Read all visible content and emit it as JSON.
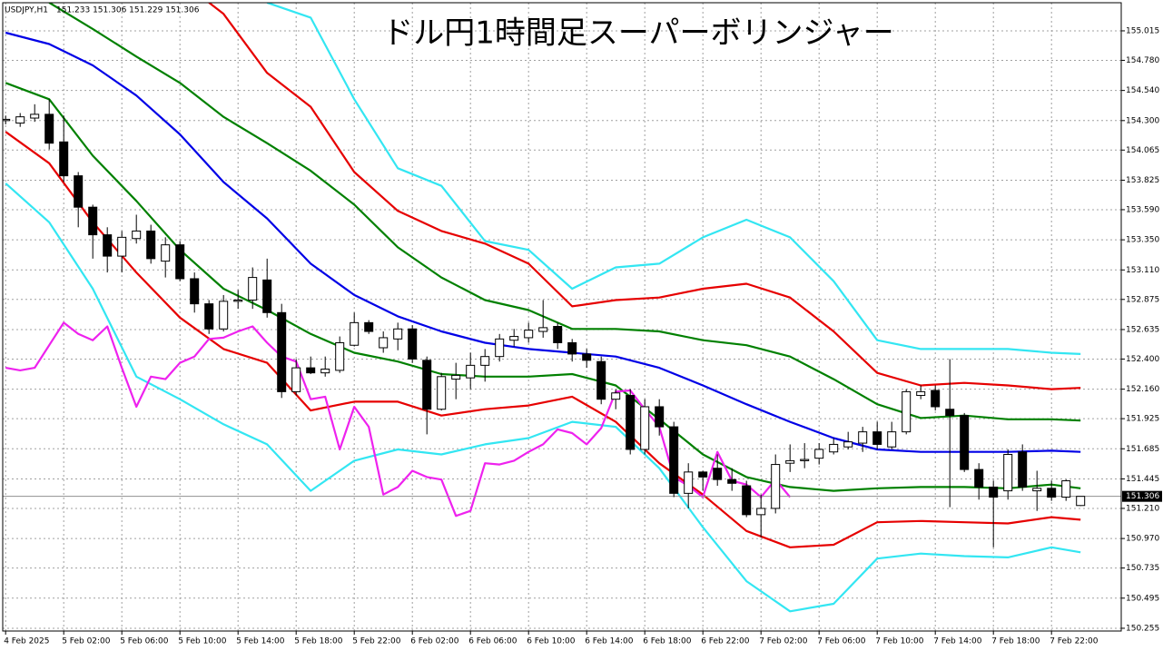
{
  "chart_data": {
    "type": "candlestick",
    "title": "ドル円1時間足スーパーボリンジャー",
    "symbol_label": "USDJPY,H1",
    "ohlc_label": "151.233 151.306 151.229 151.306",
    "last_price": 151.306,
    "grid": true,
    "up_color": "#ffffff",
    "down_color": "#000000",
    "x": [
      0,
      1,
      2,
      3,
      4,
      5,
      6,
      7,
      8,
      9,
      10,
      11,
      12,
      13,
      14,
      15,
      16,
      17,
      18,
      19,
      20,
      21,
      22,
      23,
      24,
      25,
      26,
      27,
      28,
      29,
      30,
      31,
      32,
      33,
      34,
      35,
      36,
      37,
      38,
      39,
      40,
      41,
      42,
      43,
      44,
      45,
      46,
      47,
      48,
      49,
      50,
      51,
      52,
      53,
      54,
      55,
      56,
      57,
      58,
      59,
      60,
      61,
      62,
      63,
      64,
      65,
      66,
      67,
      68,
      69,
      70,
      71,
      72,
      73,
      74
    ],
    "open": [
      154.3,
      154.28,
      154.32,
      154.35,
      154.13,
      153.86,
      153.61,
      153.39,
      153.22,
      153.36,
      153.42,
      153.18,
      153.31,
      153.04,
      152.84,
      152.64,
      152.86,
      152.87,
      153.03,
      152.77,
      152.14,
      152.33,
      152.29,
      152.31,
      152.51,
      152.69,
      152.49,
      152.56,
      152.64,
      152.39,
      152.0,
      152.24,
      152.25,
      152.35,
      152.42,
      152.55,
      152.57,
      152.62,
      152.66,
      152.53,
      152.44,
      152.38,
      152.08,
      152.11,
      151.68,
      152.02,
      151.86,
      151.33,
      151.5,
      151.53,
      151.44,
      151.39,
      151.16,
      151.21,
      151.57,
      151.59,
      151.61,
      151.66,
      151.7,
      151.73,
      151.82,
      151.7,
      151.82,
      152.11,
      152.15,
      152.0,
      151.95,
      151.52,
      151.38,
      151.35,
      151.66,
      151.35,
      151.37,
      151.3,
      151.233
    ],
    "high": [
      154.34,
      154.36,
      154.43,
      154.47,
      154.34,
      153.89,
      153.63,
      153.45,
      153.42,
      153.55,
      153.47,
      153.37,
      153.34,
      153.09,
      152.87,
      152.91,
      152.95,
      153.13,
      153.2,
      152.84,
      152.4,
      152.42,
      152.42,
      152.58,
      152.77,
      152.71,
      152.62,
      152.69,
      152.67,
      152.42,
      152.29,
      152.37,
      152.45,
      152.48,
      152.6,
      152.64,
      152.69,
      152.87,
      152.69,
      152.56,
      152.48,
      152.42,
      152.16,
      152.16,
      152.08,
      152.08,
      151.9,
      151.57,
      151.51,
      151.64,
      151.53,
      151.43,
      151.32,
      151.64,
      151.72,
      151.73,
      151.73,
      151.77,
      151.82,
      151.86,
      151.9,
      151.9,
      152.16,
      152.19,
      152.19,
      152.4,
      151.97,
      151.57,
      151.43,
      151.68,
      151.72,
      151.51,
      151.43,
      151.44,
      151.306
    ],
    "low": [
      154.27,
      154.25,
      154.29,
      154.07,
      153.81,
      153.45,
      153.2,
      153.09,
      153.09,
      153.32,
      153.16,
      153.05,
      153.02,
      152.77,
      152.6,
      152.62,
      152.8,
      152.8,
      152.73,
      152.09,
      152.11,
      152.28,
      152.26,
      152.29,
      152.5,
      152.6,
      152.45,
      152.47,
      152.37,
      151.8,
      151.99,
      152.08,
      152.16,
      152.22,
      152.38,
      152.5,
      152.53,
      152.57,
      152.48,
      152.38,
      152.33,
      152.04,
      152.0,
      151.64,
      151.64,
      151.79,
      151.3,
      151.21,
      151.35,
      151.39,
      151.35,
      151.14,
      150.98,
      151.17,
      151.5,
      151.53,
      151.56,
      151.64,
      151.68,
      151.66,
      151.68,
      151.68,
      151.8,
      152.08,
      151.99,
      151.22,
      151.5,
      151.28,
      150.9,
      151.28,
      151.35,
      151.19,
      151.27,
      151.27,
      151.229
    ],
    "close": [
      154.31,
      154.33,
      154.35,
      154.12,
      153.86,
      153.61,
      153.39,
      153.22,
      153.37,
      153.42,
      153.2,
      153.31,
      153.04,
      152.84,
      152.64,
      152.86,
      152.87,
      153.05,
      152.77,
      152.14,
      152.33,
      152.29,
      152.32,
      152.53,
      152.69,
      152.62,
      152.57,
      152.64,
      152.4,
      152.0,
      152.26,
      152.27,
      152.35,
      152.42,
      152.56,
      152.58,
      152.63,
      152.65,
      152.53,
      152.44,
      152.39,
      152.08,
      152.13,
      151.68,
      152.02,
      151.86,
      151.33,
      151.5,
      151.46,
      151.44,
      151.41,
      151.16,
      151.21,
      151.56,
      151.59,
      151.6,
      151.68,
      151.72,
      151.74,
      151.82,
      151.72,
      151.82,
      152.14,
      152.14,
      152.02,
      151.95,
      151.52,
      151.38,
      151.3,
      151.64,
      151.38,
      151.37,
      151.3,
      151.43,
      151.306
    ],
    "series": [
      {
        "color": "#33e6f2",
        "x": [
          18,
          21,
          24,
          27,
          30,
          33,
          36,
          39,
          42,
          45,
          48,
          51,
          54,
          57,
          60,
          63,
          66,
          69,
          72,
          74
        ],
        "values": [
          155.24,
          155.12,
          154.47,
          153.92,
          153.78,
          153.34,
          153.27,
          152.96,
          153.13,
          153.16,
          153.37,
          153.51,
          153.37,
          153.02,
          152.55,
          152.48,
          152.48,
          152.48,
          152.45,
          152.44
        ]
      },
      {
        "color": "#e60000",
        "x": [
          14,
          15,
          18,
          21,
          24,
          27,
          30,
          33,
          36,
          39,
          42,
          45,
          48,
          51,
          54,
          57,
          60,
          63,
          66,
          69,
          72,
          74
        ],
        "values": [
          155.24,
          155.15,
          154.68,
          154.41,
          153.89,
          153.58,
          153.42,
          153.32,
          153.16,
          152.82,
          152.87,
          152.89,
          152.96,
          153.0,
          152.89,
          152.62,
          152.29,
          152.19,
          152.21,
          152.19,
          152.16,
          152.17
        ]
      },
      {
        "color": "#008000",
        "x": [
          3,
          6,
          9,
          12,
          15,
          18,
          21,
          24,
          27,
          30,
          33,
          36,
          39,
          42,
          45,
          48,
          51,
          54,
          57,
          60,
          63,
          66,
          69,
          72,
          74
        ],
        "values": [
          155.24,
          155.03,
          154.81,
          154.6,
          154.33,
          154.12,
          153.9,
          153.63,
          153.29,
          153.05,
          152.87,
          152.79,
          152.64,
          152.64,
          152.62,
          152.55,
          152.51,
          152.42,
          152.24,
          152.04,
          151.93,
          151.95,
          151.92,
          151.92,
          151.91
        ]
      },
      {
        "color": "#0000e6",
        "x": [
          0,
          3,
          6,
          9,
          12,
          15,
          18,
          21,
          24,
          27,
          30,
          33,
          36,
          39,
          42,
          45,
          48,
          51,
          54,
          57,
          60,
          63,
          66,
          69,
          72,
          74
        ],
        "values": [
          155.0,
          154.91,
          154.74,
          154.5,
          154.19,
          153.81,
          153.52,
          153.16,
          152.91,
          152.74,
          152.62,
          152.53,
          152.48,
          152.45,
          152.42,
          152.33,
          152.19,
          152.04,
          151.9,
          151.77,
          151.68,
          151.66,
          151.66,
          151.66,
          151.67,
          151.66
        ]
      },
      {
        "color": "#008000",
        "x": [
          0,
          3,
          6,
          9,
          12,
          15,
          18,
          21,
          24,
          27,
          30,
          33,
          36,
          39,
          42,
          45,
          48,
          51,
          54,
          57,
          60,
          63,
          66,
          69,
          72,
          74
        ],
        "values": [
          154.6,
          154.47,
          154.02,
          153.66,
          153.27,
          152.96,
          152.79,
          152.6,
          152.45,
          152.38,
          152.28,
          152.26,
          152.26,
          152.28,
          152.19,
          151.92,
          151.64,
          151.46,
          151.38,
          151.35,
          151.37,
          151.38,
          151.38,
          151.37,
          151.4,
          151.37
        ]
      },
      {
        "color": "#e60000",
        "x": [
          0,
          3,
          6,
          9,
          12,
          15,
          18,
          21,
          24,
          27,
          30,
          33,
          36,
          39,
          42,
          45,
          48,
          51,
          54,
          57,
          60,
          63,
          66,
          69,
          72,
          74
        ],
        "values": [
          154.21,
          153.96,
          153.49,
          153.09,
          152.73,
          152.48,
          152.37,
          151.99,
          152.06,
          152.06,
          151.95,
          152.0,
          152.03,
          152.1,
          151.9,
          151.57,
          151.32,
          151.03,
          150.9,
          150.92,
          151.1,
          151.11,
          151.1,
          151.09,
          151.14,
          151.12
        ]
      },
      {
        "color": "#33e6f2",
        "x": [
          0,
          3,
          6,
          9,
          12,
          15,
          18,
          21,
          24,
          27,
          30,
          33,
          36,
          39,
          42,
          45,
          48,
          51,
          54,
          57,
          60,
          63,
          66,
          69,
          72,
          74
        ],
        "values": [
          153.8,
          153.49,
          152.96,
          152.26,
          152.08,
          151.88,
          151.72,
          151.35,
          151.59,
          151.68,
          151.64,
          151.72,
          151.77,
          151.9,
          151.86,
          151.53,
          151.06,
          150.63,
          150.39,
          150.45,
          150.81,
          150.85,
          150.83,
          150.82,
          150.9,
          150.86
        ]
      },
      {
        "color": "#ee22ee",
        "x": [
          0,
          1,
          2,
          3,
          4,
          5,
          6,
          7,
          8,
          9,
          10,
          11,
          12,
          13,
          14,
          15,
          16,
          17,
          18,
          19,
          20,
          21,
          22,
          23,
          24,
          25,
          26,
          27,
          28,
          29,
          30,
          31,
          32,
          33,
          34,
          35,
          36,
          37,
          38,
          39,
          40,
          41,
          42,
          43,
          44,
          45,
          46,
          47,
          48,
          49,
          50,
          51,
          52,
          53,
          54
        ],
        "values": [
          152.33,
          152.31,
          152.33,
          152.51,
          152.69,
          152.6,
          152.55,
          152.66,
          152.33,
          152.02,
          152.26,
          152.24,
          152.37,
          152.42,
          152.56,
          152.57,
          152.62,
          152.66,
          152.53,
          152.42,
          152.38,
          152.08,
          152.1,
          151.68,
          152.02,
          151.86,
          151.32,
          151.38,
          151.51,
          151.46,
          151.44,
          151.15,
          151.19,
          151.57,
          151.56,
          151.59,
          151.66,
          151.72,
          151.84,
          151.81,
          151.72,
          151.85,
          152.14,
          152.15,
          152.0,
          151.86,
          151.46,
          151.39,
          151.3,
          151.66,
          151.43,
          151.4,
          151.3,
          151.44,
          151.3
        ]
      }
    ],
    "xlim": [
      -0.2,
      76.8
    ],
    "xticks": [
      {
        "value": 0,
        "label": "4 Feb 2025"
      },
      {
        "value": 4,
        "label": "5 Feb 02:00"
      },
      {
        "value": 8,
        "label": "5 Feb 06:00"
      },
      {
        "value": 12,
        "label": "5 Feb 10:00"
      },
      {
        "value": 16,
        "label": "5 Feb 14:00"
      },
      {
        "value": 20,
        "label": "5 Feb 18:00"
      },
      {
        "value": 24,
        "label": "5 Feb 22:00"
      },
      {
        "value": 28,
        "label": "6 Feb 02:00"
      },
      {
        "value": 32,
        "label": "6 Feb 06:00"
      },
      {
        "value": 36,
        "label": "6 Feb 10:00"
      },
      {
        "value": 40,
        "label": "6 Feb 14:00"
      },
      {
        "value": 44,
        "label": "6 Feb 18:00"
      },
      {
        "value": 48,
        "label": "6 Feb 22:00"
      },
      {
        "value": 52,
        "label": "7 Feb 02:00"
      },
      {
        "value": 56,
        "label": "7 Feb 06:00"
      },
      {
        "value": 60,
        "label": "7 Feb 10:00"
      },
      {
        "value": 64,
        "label": "7 Feb 14:00"
      },
      {
        "value": 68,
        "label": "7 Feb 18:00"
      },
      {
        "value": 72,
        "label": "7 Feb 22:00"
      }
    ],
    "ylim": [
      150.233,
      155.239
    ],
    "yticks": [
      155.015,
      {
        "value": 154.78,
        "label": "154.780"
      },
      {
        "value": 154.54,
        "label": "154.540"
      },
      {
        "value": 154.3,
        "label": "154.300"
      },
      154.065,
      153.825,
      {
        "value": 153.59,
        "label": "153.590"
      },
      {
        "value": 153.35,
        "label": "153.350"
      },
      {
        "value": 153.11,
        "label": "153.110"
      },
      152.875,
      152.635,
      {
        "value": 152.4,
        "label": "152.400"
      },
      {
        "value": 152.16,
        "label": "152.160"
      },
      151.925,
      151.685,
      151.445,
      {
        "value": 151.21,
        "label": "151.210"
      },
      {
        "value": 150.97,
        "label": "150.970"
      },
      150.735,
      150.495,
      150.255
    ]
  }
}
